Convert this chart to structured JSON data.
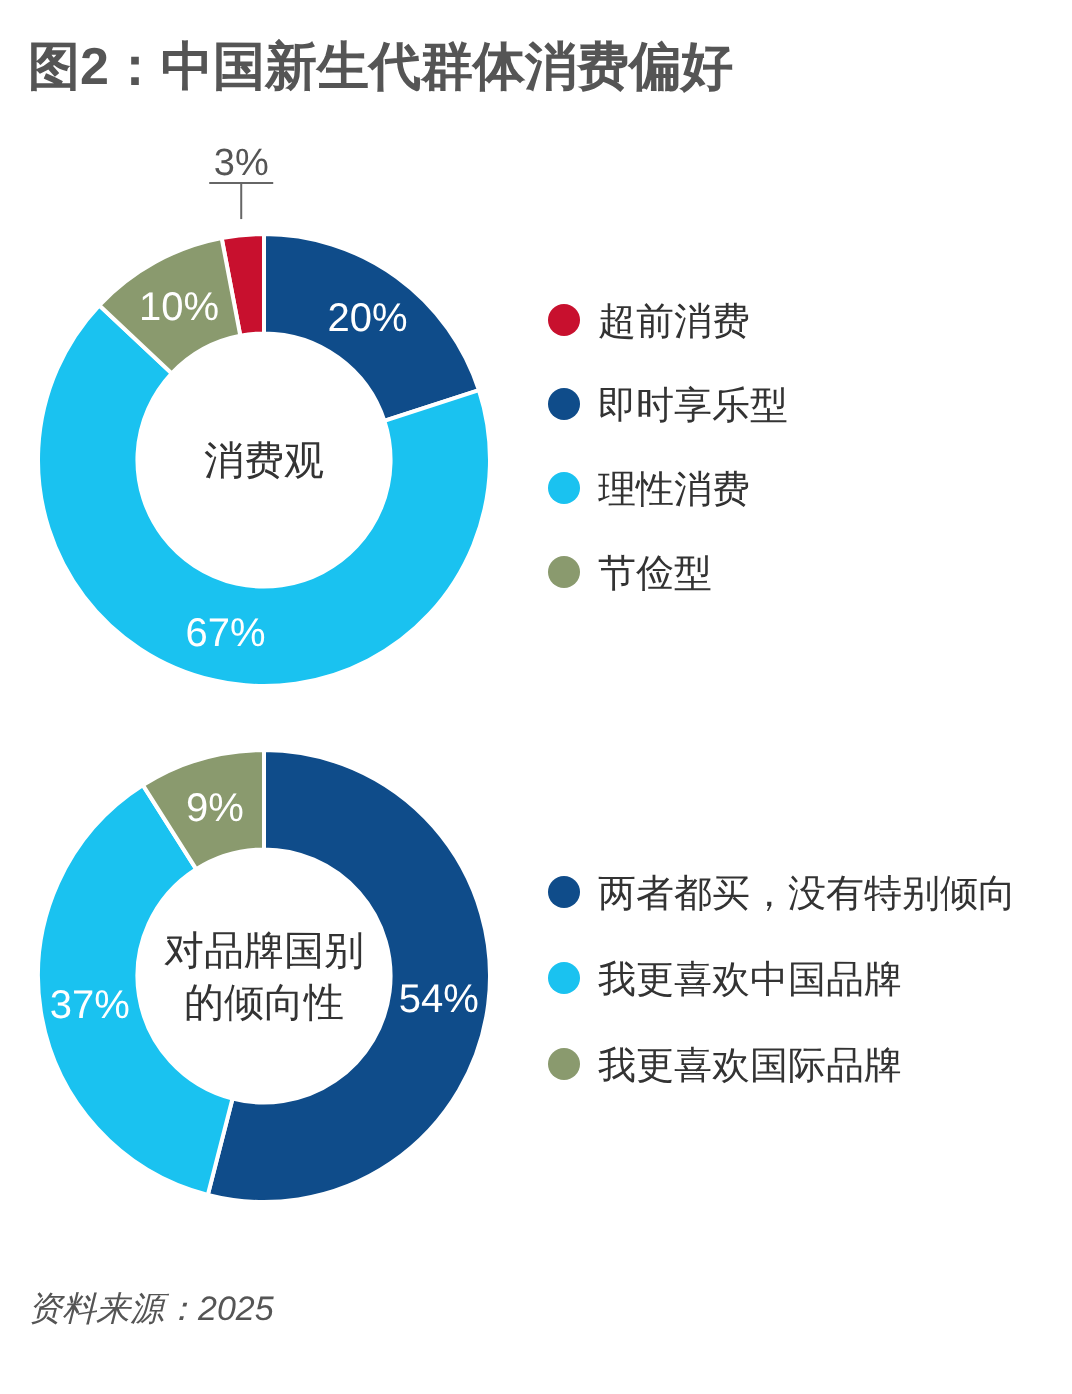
{
  "chart_data": [
    {
      "type": "donut",
      "title": "图2：中国新生代群体消费偏好",
      "annotations": [
        "消费观"
      ],
      "categories": [
        "超前消费",
        "即时享乐型",
        "理性消费",
        "节俭型"
      ],
      "values": [
        3,
        20,
        67,
        10
      ],
      "colors": [
        "#c8102e",
        "#0f4c8a",
        "#1ac2f0",
        "#8a9a6e"
      ],
      "value_labels": [
        "3%",
        "20%",
        "67%",
        "10%"
      ],
      "legend": "right"
    },
    {
      "type": "donut",
      "annotations": [
        "对品牌国别的倾向性",
        "资料来源：2025"
      ],
      "categories": [
        "两者都买，没有特别倾向",
        "我更喜欢中国品牌",
        "我更喜欢国际品牌"
      ],
      "values": [
        54,
        37,
        9
      ],
      "colors": [
        "#0f4c8a",
        "#1ac2f0",
        "#8a9a6e"
      ],
      "value_labels": [
        "54%",
        "37%",
        "9%"
      ],
      "legend": "right"
    }
  ]
}
